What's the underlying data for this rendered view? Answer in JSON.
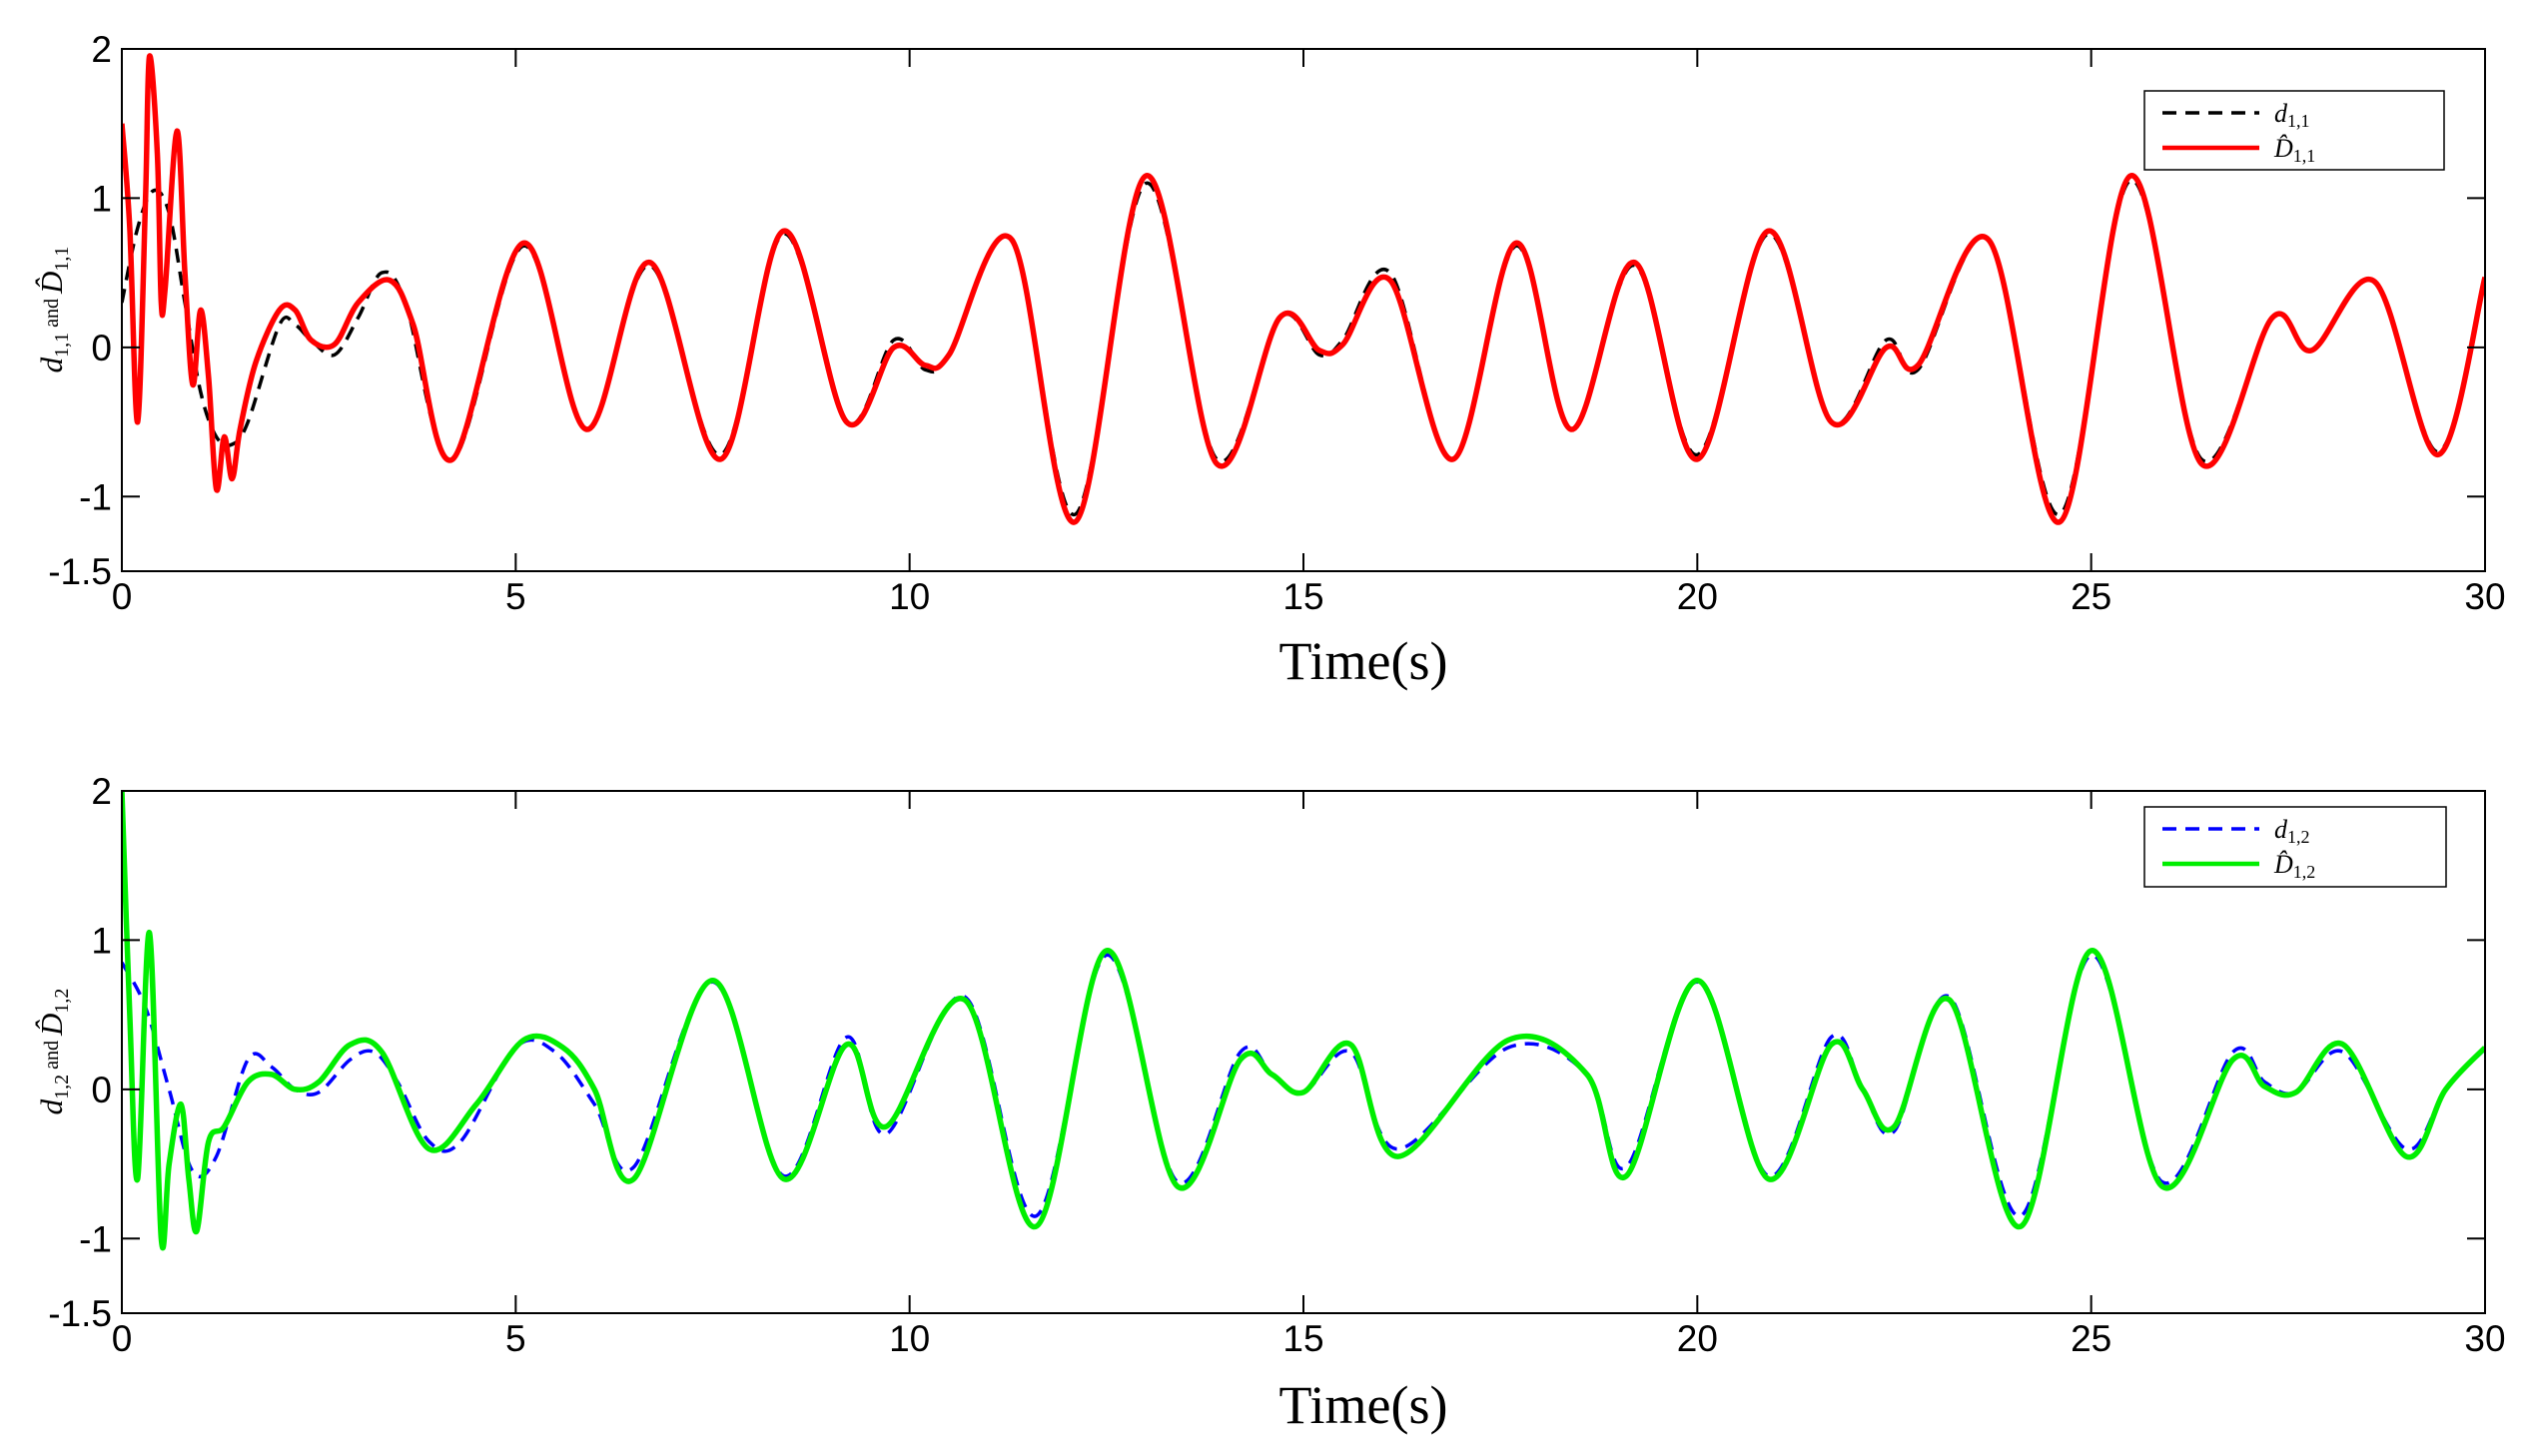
{
  "chart_data": [
    {
      "type": "line",
      "xlabel": "Time(s)",
      "ylabel": {
        "var1": "d",
        "sub1": "1,1",
        "and": "and",
        "var2": "D̂",
        "sub2": "1,1"
      },
      "xlim": [
        0,
        30
      ],
      "ylim": [
        -1.5,
        2
      ],
      "xticks": [
        0,
        5,
        10,
        15,
        20,
        25,
        30
      ],
      "yticks": [
        -1.5,
        -1,
        0,
        1,
        2
      ],
      "ytick_labels": [
        "-1.5",
        "-1",
        "0",
        "1",
        "2"
      ],
      "xtick_labels": [
        "0",
        "5",
        "10",
        "15",
        "20",
        "25",
        "30"
      ],
      "grid": false,
      "legend_position": "top-right",
      "series": [
        {
          "name": "d",
          "sub": "1,1",
          "color": "#000000",
          "dash": true,
          "x": [
            0,
            0.2,
            0.4,
            0.6,
            0.8,
            1.0,
            1.2,
            1.4,
            1.6,
            2.0,
            2.2,
            2.4,
            2.7,
            3.0,
            3.3,
            3.6,
            4.2,
            5.1,
            5.9,
            6.7,
            7.6,
            8.4,
            9.2,
            9.8,
            10.2,
            10.5,
            11.3,
            12.1,
            13.0,
            13.9,
            14.7,
            15.2,
            15.5,
            16.1,
            16.9,
            17.7,
            18.4,
            19.2,
            20.0,
            20.9,
            21.7,
            22.4,
            22.8,
            23.7,
            24.6,
            25.5,
            26.4,
            27.3,
            27.8,
            28.6,
            29.4,
            30.0
          ],
          "y": [
            0.3,
            0.8,
            1.05,
            0.9,
            0.3,
            -0.3,
            -0.6,
            -0.65,
            -0.5,
            0.15,
            0.15,
            0.05,
            -0.05,
            0.2,
            0.5,
            0.3,
            -0.75,
            0.68,
            -0.55,
            0.55,
            -0.72,
            0.76,
            -0.5,
            0.05,
            -0.15,
            -0.05,
            0.72,
            -1.12,
            1.1,
            -0.75,
            0.2,
            -0.05,
            0.05,
            0.5,
            -0.75,
            0.68,
            -0.55,
            0.55,
            -0.72,
            0.76,
            -0.5,
            0.05,
            -0.15,
            0.72,
            -1.12,
            1.12,
            -0.75,
            0.2,
            -0.02,
            0.44,
            -0.7,
            0.45
          ]
        },
        {
          "name": "D̂",
          "sub": "1,1",
          "color": "#ff0000",
          "dash": false,
          "x": [
            0,
            0.1,
            0.2,
            0.3,
            0.35,
            0.45,
            0.5,
            0.55,
            0.7,
            0.8,
            0.9,
            1.0,
            1.1,
            1.2,
            1.3,
            1.4,
            1.5,
            1.7,
            2.0,
            2.2,
            2.4,
            2.7,
            3.0,
            3.4,
            3.7,
            4.2,
            5.1,
            5.9,
            6.7,
            7.6,
            8.4,
            9.2,
            9.8,
            10.2,
            10.5,
            11.3,
            12.1,
            13.0,
            13.9,
            14.7,
            15.2,
            15.5,
            16.1,
            16.9,
            17.7,
            18.4,
            19.2,
            20.0,
            20.9,
            21.7,
            22.4,
            22.8,
            23.7,
            24.6,
            25.5,
            26.4,
            27.3,
            27.8,
            28.6,
            29.4,
            30.0
          ],
          "y": [
            1.5,
            0.8,
            -0.5,
            1.0,
            1.95,
            1.3,
            0.3,
            0.4,
            1.45,
            0.5,
            -0.25,
            0.25,
            -0.2,
            -0.95,
            -0.6,
            -0.88,
            -0.55,
            -0.1,
            0.25,
            0.25,
            0.05,
            0.02,
            0.3,
            0.45,
            0.15,
            -0.75,
            0.7,
            -0.55,
            0.57,
            -0.75,
            0.78,
            -0.5,
            0.0,
            -0.12,
            -0.05,
            0.72,
            -1.17,
            1.15,
            -0.78,
            0.2,
            -0.02,
            0.02,
            0.45,
            -0.75,
            0.7,
            -0.55,
            0.57,
            -0.75,
            0.78,
            -0.5,
            0.0,
            -0.12,
            0.72,
            -1.17,
            1.15,
            -0.78,
            0.2,
            -0.02,
            0.44,
            -0.72,
            0.47
          ]
        }
      ]
    },
    {
      "type": "line",
      "xlabel": "Time(s)",
      "ylabel": {
        "var1": "d",
        "sub1": "1,2",
        "and": "and",
        "var2": "D̂",
        "sub2": "1,2"
      },
      "xlim": [
        0,
        30
      ],
      "ylim": [
        -1.5,
        2
      ],
      "xticks": [
        0,
        5,
        10,
        15,
        20,
        25,
        30
      ],
      "yticks": [
        -1.5,
        -1,
        0,
        1,
        2
      ],
      "ytick_labels": [
        "-1.5",
        "-1",
        "0",
        "1",
        "2"
      ],
      "xtick_labels": [
        "0",
        "5",
        "10",
        "15",
        "20",
        "25",
        "30"
      ],
      "grid": false,
      "legend_position": "top-right",
      "series": [
        {
          "name": "d",
          "sub": "1,2",
          "color": "#0000ff",
          "dash": true,
          "x": [
            0,
            0.3,
            0.6,
            0.9,
            1.2,
            1.6,
            1.9,
            2.2,
            2.5,
            2.9,
            3.2,
            3.5,
            3.9,
            4.3,
            5.0,
            5.5,
            6.0,
            6.5,
            7.5,
            8.4,
            9.2,
            9.7,
            10.7,
            11.6,
            12.5,
            13.4,
            14.2,
            14.6,
            15.0,
            15.6,
            16.2,
            17.6,
            18.6,
            19.1,
            20.0,
            20.9,
            21.7,
            22.1,
            22.5,
            23.2,
            24.1,
            25.0,
            25.9,
            26.8,
            27.2,
            27.6,
            28.2,
            29.0,
            29.5,
            30.0
          ],
          "y": [
            0.85,
            0.55,
            0.0,
            -0.55,
            -0.45,
            0.2,
            0.15,
            0.0,
            -0.02,
            0.2,
            0.25,
            0.05,
            -0.35,
            -0.35,
            0.28,
            0.25,
            -0.1,
            -0.52,
            0.72,
            -0.58,
            0.35,
            -0.3,
            0.62,
            -0.85,
            0.9,
            -0.62,
            0.25,
            0.1,
            -0.02,
            0.25,
            -0.4,
            0.28,
            0.1,
            -0.52,
            0.72,
            -0.58,
            0.35,
            0.0,
            -0.28,
            0.62,
            -0.85,
            0.9,
            -0.62,
            0.25,
            0.05,
            -0.02,
            0.25,
            -0.4,
            0.0,
            0.27
          ]
        },
        {
          "name": "D̂",
          "sub": "1,2",
          "color": "#00ee00",
          "dash": false,
          "x": [
            0,
            0.1,
            0.2,
            0.35,
            0.5,
            0.6,
            0.75,
            0.85,
            0.95,
            1.1,
            1.3,
            1.6,
            1.9,
            2.2,
            2.5,
            2.9,
            3.3,
            3.9,
            4.5,
            5.1,
            5.6,
            6.0,
            6.5,
            7.5,
            8.4,
            9.2,
            9.7,
            10.7,
            11.6,
            12.5,
            13.4,
            14.2,
            14.6,
            15.0,
            15.6,
            16.2,
            17.6,
            18.6,
            19.1,
            20.0,
            20.9,
            21.7,
            22.1,
            22.5,
            23.2,
            24.1,
            25.0,
            25.9,
            26.8,
            27.2,
            27.6,
            28.2,
            29.0,
            29.5,
            30.0
          ],
          "y": [
            2.0,
            0.5,
            -0.6,
            1.05,
            -1.0,
            -0.5,
            -0.1,
            -0.6,
            -0.95,
            -0.35,
            -0.25,
            0.05,
            0.1,
            0.0,
            0.05,
            0.3,
            0.25,
            -0.4,
            -0.1,
            0.33,
            0.28,
            0.0,
            -0.6,
            0.73,
            -0.6,
            0.3,
            -0.25,
            0.6,
            -0.92,
            0.93,
            -0.65,
            0.2,
            0.1,
            -0.02,
            0.3,
            -0.45,
            0.33,
            0.1,
            -0.58,
            0.73,
            -0.6,
            0.3,
            0.0,
            -0.25,
            0.6,
            -0.92,
            0.93,
            -0.65,
            0.2,
            0.02,
            -0.02,
            0.3,
            -0.45,
            0.0,
            0.28
          ]
        }
      ]
    }
  ]
}
